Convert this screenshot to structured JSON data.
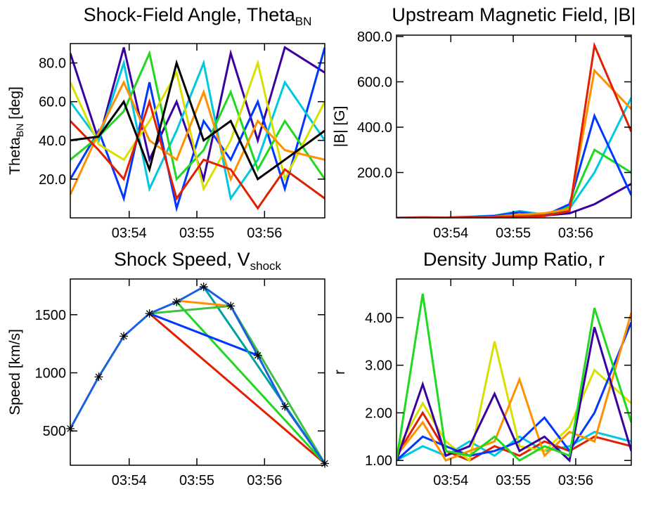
{
  "chart_data": [
    {
      "type": "line",
      "title": "Shock-Field Angle, Theta",
      "title_sub": "BN",
      "ylabel": "Theta",
      "ylabel_sub": "BN",
      "ylabel_rest": " [deg]",
      "x": [
        53.13,
        53.55,
        53.92,
        54.3,
        54.7,
        55.1,
        55.5,
        55.9,
        56.3,
        56.89
      ],
      "xlim": [
        53.13,
        56.89
      ],
      "xticks": [
        {
          "value": 54,
          "label": "03:54"
        },
        {
          "value": 55,
          "label": "03:55"
        },
        {
          "value": 56,
          "label": "03:56"
        }
      ],
      "ylim": [
        0,
        90
      ],
      "yticks": [
        {
          "value": 20,
          "label": "20.0"
        },
        {
          "value": 40,
          "label": "40.0"
        },
        {
          "value": 60,
          "label": "60.0"
        },
        {
          "value": 80,
          "label": "80.0"
        }
      ],
      "series": [
        {
          "color": "#3a00a0",
          "values": [
            85,
            40,
            88,
            30,
            60,
            20,
            85,
            40,
            88,
            75
          ]
        },
        {
          "color": "#0038ff",
          "values": [
            20,
            45,
            10,
            70,
            5,
            50,
            30,
            60,
            15,
            88
          ]
        },
        {
          "color": "#00c8e0",
          "values": [
            60,
            40,
            80,
            15,
            45,
            80,
            10,
            30,
            70,
            40
          ]
        },
        {
          "color": "#20d820",
          "values": [
            30,
            42,
            55,
            85,
            20,
            35,
            65,
            25,
            50,
            20
          ]
        },
        {
          "color": "#d8e000",
          "values": [
            70,
            38,
            30,
            50,
            75,
            15,
            40,
            80,
            20,
            60
          ]
        },
        {
          "color": "#ff9000",
          "values": [
            12,
            44,
            70,
            40,
            30,
            65,
            20,
            50,
            35,
            30
          ]
        },
        {
          "color": "#e02000",
          "values": [
            50,
            35,
            20,
            60,
            10,
            30,
            25,
            5,
            25,
            10
          ]
        },
        {
          "color": "#000000",
          "values": [
            40,
            42,
            60,
            25,
            80,
            40,
            50,
            20,
            30,
            45
          ]
        }
      ]
    },
    {
      "type": "line",
      "title": "Upstream Magnetic Field, |B|",
      "ylabel": "|B| [G]",
      "x": [
        53.13,
        53.55,
        53.92,
        54.3,
        54.7,
        55.1,
        55.5,
        55.9,
        56.3,
        56.89
      ],
      "xlim": [
        53.13,
        56.89
      ],
      "xticks": [
        {
          "value": 54,
          "label": "03:54"
        },
        {
          "value": 55,
          "label": "03:55"
        },
        {
          "value": 56,
          "label": "03:56"
        }
      ],
      "ylim": [
        0,
        806
      ],
      "yticks": [
        {
          "value": 200,
          "label": "200.0"
        },
        {
          "value": 400,
          "label": "400.0"
        },
        {
          "value": 600,
          "label": "600.0"
        },
        {
          "value": 800,
          "label": "800.0"
        }
      ],
      "series": [
        {
          "color": "#3a00a0",
          "values": [
            0,
            2,
            1,
            3,
            5,
            8,
            10,
            20,
            60,
            150
          ]
        },
        {
          "color": "#00c8e0",
          "values": [
            1,
            3,
            2,
            5,
            10,
            30,
            15,
            40,
            200,
            530
          ]
        },
        {
          "color": "#20d820",
          "values": [
            0,
            1,
            1,
            3,
            6,
            10,
            12,
            50,
            300,
            200
          ]
        },
        {
          "color": "#0038ff",
          "values": [
            0,
            2,
            1,
            4,
            8,
            25,
            10,
            60,
            450,
            100
          ]
        },
        {
          "color": "#ff9000",
          "values": [
            0,
            1,
            1,
            2,
            5,
            15,
            20,
            40,
            650,
            480
          ]
        },
        {
          "color": "#e02000",
          "values": [
            0,
            1,
            0,
            2,
            4,
            6,
            8,
            30,
            760,
            380
          ]
        }
      ]
    },
    {
      "type": "line",
      "title": "Shock Speed, V",
      "title_sub": "shock",
      "ylabel": "Speed [km/s]",
      "x": [
        53.13,
        53.55,
        53.92,
        54.3,
        54.7,
        55.1,
        55.5,
        55.9,
        56.3,
        56.89
      ],
      "xlim": [
        53.13,
        56.89
      ],
      "xticks": [
        {
          "value": 54,
          "label": "03:54"
        },
        {
          "value": 55,
          "label": "03:55"
        },
        {
          "value": 56,
          "label": "03:56"
        }
      ],
      "ylim": [
        205,
        1807
      ],
      "yticks": [
        500,
        1000,
        1500
      ],
      "series": [
        {
          "color": "#e02000",
          "x": [
            54.3,
            56.89
          ],
          "values": [
            1510,
            220
          ]
        },
        {
          "color": "#20d820",
          "x": [
            54.7,
            56.89
          ],
          "values": [
            1610,
            220
          ]
        },
        {
          "color": "#0038ff",
          "x": [
            54.3,
            55.9
          ],
          "values": [
            1510,
            1150
          ]
        },
        {
          "color": "#00a0a0",
          "x": [
            55.1,
            56.89
          ],
          "values": [
            1740,
            220
          ]
        },
        {
          "color": "#ff9000",
          "x": [
            54.7,
            55.5
          ],
          "values": [
            1620,
            1575
          ]
        },
        {
          "color": "#40c040",
          "x": [
            54.3,
            55.5,
            56.89
          ],
          "values": [
            1510,
            1575,
            220
          ]
        },
        {
          "color": "#1a60e0",
          "marker": "asterisk",
          "values": [
            520,
            965,
            1315,
            1510,
            1610,
            1740,
            1575,
            1150,
            710,
            220
          ]
        }
      ]
    },
    {
      "type": "line",
      "title": "Density Jump Ratio, r",
      "ylabel": "r",
      "x": [
        53.13,
        53.55,
        53.92,
        54.3,
        54.7,
        55.1,
        55.5,
        55.9,
        56.3,
        56.89
      ],
      "xlim": [
        53.13,
        56.89
      ],
      "xticks": [
        {
          "value": 54,
          "label": "03:54"
        },
        {
          "value": 55,
          "label": "03:55"
        },
        {
          "value": 56,
          "label": "03:56"
        }
      ],
      "ylim": [
        0.9,
        4.81
      ],
      "yticks": [
        {
          "value": 1,
          "label": "1.00"
        },
        {
          "value": 2,
          "label": "2.00"
        },
        {
          "value": 3,
          "label": "3.00"
        },
        {
          "value": 4,
          "label": "4.00"
        }
      ],
      "series": [
        {
          "color": "#00c8e0",
          "values": [
            1.0,
            1.3,
            1.1,
            1.4,
            1.1,
            1.5,
            1.2,
            1.3,
            1.6,
            1.4
          ]
        },
        {
          "color": "#e02000",
          "values": [
            1.1,
            2.0,
            1.2,
            1.0,
            1.3,
            1.1,
            1.4,
            1.2,
            1.5,
            1.3
          ]
        },
        {
          "color": "#d8e000",
          "values": [
            1.2,
            2.2,
            1.4,
            1.0,
            3.5,
            1.3,
            1.2,
            1.7,
            2.9,
            2.2
          ]
        },
        {
          "color": "#0038ff",
          "values": [
            1.0,
            1.5,
            1.3,
            1.1,
            1.2,
            1.4,
            1.9,
            1.2,
            2.0,
            3.9
          ]
        },
        {
          "color": "#ff9000",
          "values": [
            1.1,
            1.8,
            1.0,
            1.2,
            1.4,
            2.7,
            1.1,
            1.6,
            1.4,
            4.1
          ]
        },
        {
          "color": "#3a00a0",
          "values": [
            1.0,
            2.6,
            1.1,
            1.3,
            2.4,
            1.2,
            1.5,
            1.0,
            3.8,
            1.2
          ]
        },
        {
          "color": "#20d820",
          "values": [
            1.0,
            4.5,
            1.2,
            1.1,
            1.5,
            1.0,
            1.3,
            1.1,
            4.2,
            1.8
          ]
        }
      ]
    }
  ]
}
